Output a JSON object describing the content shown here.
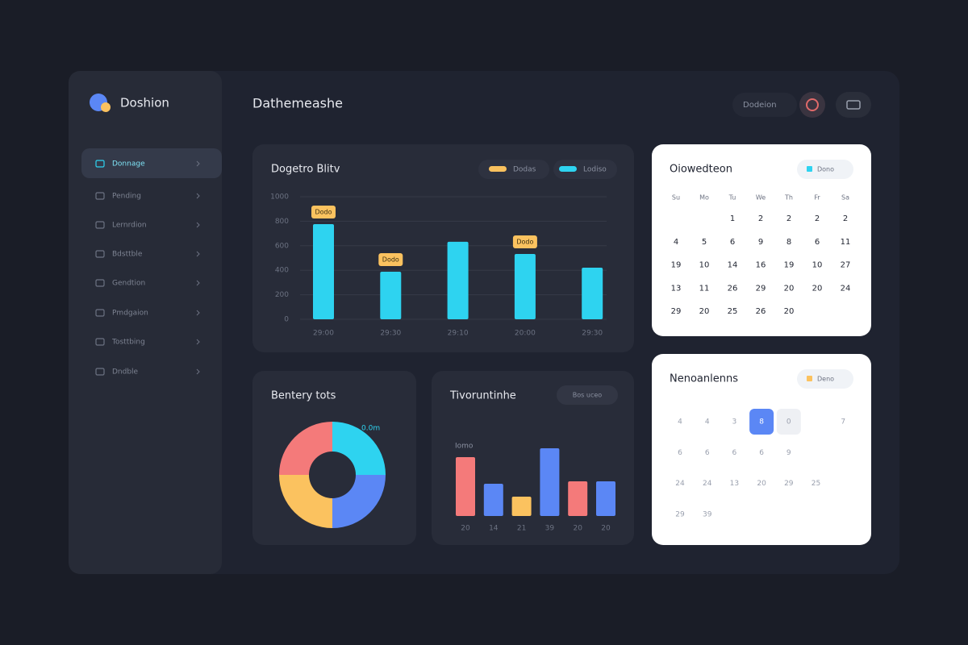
{
  "header": {
    "brand": "Doshion",
    "title": "Dathemeashe",
    "search": "Dodeion"
  },
  "sidebar": {
    "nav": [
      "Donnage",
      "Pending",
      "Lernrdion",
      "Bdsttble",
      "Gendtion",
      "Pmdgaion",
      "Tosttbing",
      "Dndble"
    ],
    "active": 0
  },
  "bar_chart": {
    "type": "bar",
    "title": "Dogetro Blitv",
    "legend": [
      {
        "name": "Dodas",
        "color": "#f9c15e"
      },
      {
        "name": "Lodiso",
        "color": "#2ed3f0"
      }
    ],
    "categories": [
      "29:00",
      "29:30",
      "29:10",
      "20:00",
      "29:30"
    ],
    "values": [
      776,
      388,
      632,
      533,
      421
    ],
    "annotations": [
      "Dodo",
      "Dodo",
      null,
      "Dodo",
      null
    ],
    "color": "#2ed3f0",
    "ylim": [
      0,
      1000
    ],
    "yticks": [
      0,
      200,
      400,
      600,
      800,
      1000
    ],
    "grid": true
  },
  "donut_chart": {
    "type": "pie",
    "title": "Bentery tots",
    "label": "0.0m",
    "values": [
      25,
      25,
      25,
      25
    ],
    "colors": [
      "#2ed3f0",
      "#5b87f5",
      "#fbc25f",
      "#f47a7a"
    ]
  },
  "column_chart": {
    "type": "bar",
    "title": "Tivoruntinhe",
    "button": "Bos uceo",
    "label": "Iomo",
    "categories": [
      "20",
      "14",
      "21",
      "39",
      "20",
      "20"
    ],
    "values": [
      73,
      40,
      24,
      84,
      43,
      43
    ],
    "colors": [
      "#f47a7a",
      "#5b87f5",
      "#fbc25f",
      "#5b87f5",
      "#f47a7a",
      "#5b87f5"
    ]
  },
  "calendar": {
    "title": "Oiowedteon",
    "badge": "Dono",
    "weekdays": [
      "Su",
      "Mo",
      "Tu",
      "We",
      "Th",
      "Fr",
      "Sa"
    ],
    "rows": [
      [
        "",
        "",
        "1",
        "2",
        "2",
        "2",
        "2"
      ],
      [
        "4",
        "5",
        "6",
        "9",
        "8",
        "6",
        "11"
      ],
      [
        "19",
        "10",
        "14",
        "16",
        "19",
        "10",
        "27"
      ],
      [
        "13",
        "11",
        "26",
        "29",
        "20",
        "20",
        "24"
      ],
      [
        "29",
        "20",
        "25",
        "26",
        "20"
      ]
    ]
  },
  "notifications": {
    "title": "Nenoanlenns",
    "badge": "Deno",
    "rows": [
      [
        "4",
        "4",
        "3",
        "8",
        "0",
        "",
        "7"
      ],
      [
        "6",
        "6",
        "6",
        "6",
        "9"
      ],
      [
        "24",
        "24",
        "13",
        "20",
        "29",
        "25"
      ],
      [
        "29",
        "39"
      ]
    ],
    "selected": [
      0,
      3
    ],
    "muted": [
      0,
      4
    ]
  }
}
